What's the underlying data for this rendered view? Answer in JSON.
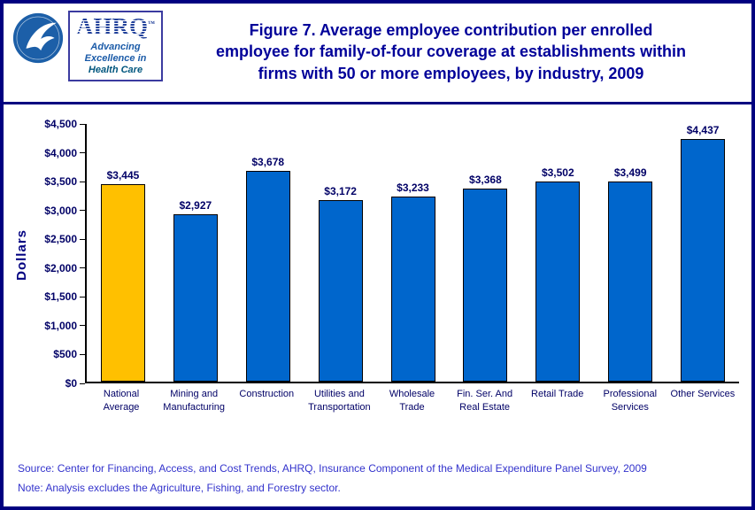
{
  "header": {
    "logo": {
      "name": "AHRQ",
      "trademark": "™",
      "tagline": [
        "Advancing",
        "Excellence in",
        "Health Care"
      ]
    },
    "title_lines": [
      "Figure 7. Average employee contribution per enrolled",
      "employee for family-of-four coverage at establishments within",
      "firms with 50 or more employees, by industry, 2009"
    ]
  },
  "chart_data": {
    "type": "bar",
    "title": "Figure 7. Average employee contribution per enrolled employee for family-of-four coverage at establishments within firms with 50 or more employees, by industry, 2009",
    "xlabel": "",
    "ylabel": "Dollars",
    "ylim": [
      0,
      4500
    ],
    "ytick_interval": 500,
    "ytick_labels": [
      "$0",
      "$500",
      "$1,000",
      "$1,500",
      "$2,000",
      "$2,500",
      "$3,000",
      "$3,500",
      "$4,000",
      "$4,500"
    ],
    "categories": [
      "National Average",
      "Mining and Manufacturing",
      "Construction",
      "Utilities and Transportation",
      "Wholesale Trade",
      "Fin. Ser. And Real Estate",
      "Retail Trade",
      "Professional Services",
      "Other Services"
    ],
    "values": [
      3445,
      2927,
      3678,
      3172,
      3233,
      3368,
      3502,
      3499,
      4437
    ],
    "value_labels": [
      "$3,445",
      "$2,927",
      "$3,678",
      "$3,172",
      "$3,233",
      "$3,368",
      "$3,502",
      "$3,499",
      "$4,437"
    ],
    "bar_colors": [
      "#FFC000",
      "#0066CC",
      "#0066CC",
      "#0066CC",
      "#0066CC",
      "#0066CC",
      "#0066CC",
      "#0066CC",
      "#0066CC"
    ],
    "grid": false,
    "legend": false
  },
  "footer": {
    "source": "Source: Center for Financing, Access, and Cost Trends, AHRQ, Insurance Component of the Medical Expenditure Panel Survey, 2009",
    "note": "Note: Analysis excludes the Agriculture, Fishing, and Forestry sector."
  },
  "colors": {
    "title_navy": "#000099",
    "border_navy": "#000080",
    "axis_text_navy": "#000066",
    "footer_blue": "#3333CC",
    "bar_blue": "#0066CC",
    "highlight_gold": "#FFC000"
  }
}
